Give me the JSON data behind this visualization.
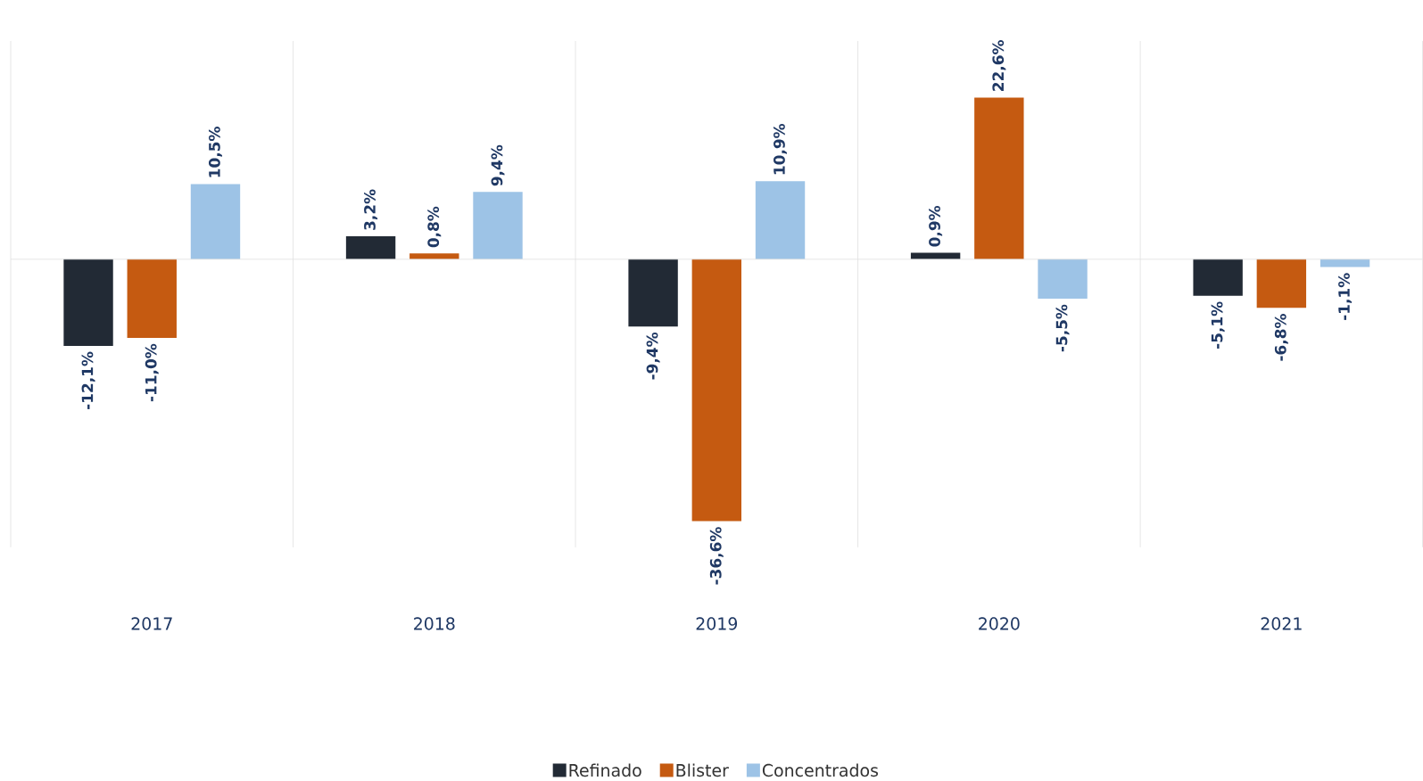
{
  "chart_data": {
    "type": "bar",
    "categories": [
      "2017",
      "2018",
      "2019",
      "2020",
      "2021"
    ],
    "series": [
      {
        "name": "Refinado",
        "color": "#222a35",
        "values": [
          -12.1,
          3.2,
          -9.4,
          0.9,
          -5.1
        ],
        "value_labels": [
          "-12,1%",
          "3,2%",
          "-9,4%",
          "0,9%",
          "-5,1%"
        ]
      },
      {
        "name": "Blister",
        "color": "#c55a11",
        "values": [
          -11.0,
          0.8,
          -36.6,
          22.6,
          -6.8
        ],
        "value_labels": [
          "-11,0%",
          "0,8%",
          "-36,6%",
          "22,6%",
          "-6,8%"
        ]
      },
      {
        "name": "Concentrados",
        "color": "#9dc3e6",
        "values": [
          10.5,
          9.4,
          10.9,
          -5.5,
          -1.1
        ],
        "value_labels": [
          "10,5%",
          "9,4%",
          "10,9%",
          "-5,5%",
          "-1,1%"
        ]
      }
    ],
    "grid": "x",
    "legend": "bottom"
  }
}
